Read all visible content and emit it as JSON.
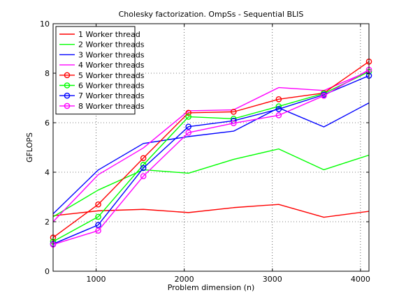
{
  "chart_data": {
    "type": "line",
    "title": "Cholesky factorization. OmpSs - Sequential BLIS",
    "xlabel": "Problem dimension (n)",
    "ylabel": "GFLOPS",
    "xlim": [
      512,
      4096
    ],
    "ylim": [
      0,
      10
    ],
    "x_ticks": [
      1000,
      2000,
      3000,
      4000
    ],
    "y_ticks": [
      0,
      2,
      4,
      6,
      8,
      10
    ],
    "grid": true,
    "legend_position": "top-left",
    "x": [
      512,
      1024,
      1536,
      2048,
      2560,
      3072,
      3584,
      4096
    ],
    "series": [
      {
        "name": "1 Worker thread",
        "color": "#ff0000",
        "marker": "none",
        "values": [
          2.24,
          2.44,
          2.5,
          2.37,
          2.57,
          2.7,
          2.18,
          2.42
        ]
      },
      {
        "name": "2 Worker threads",
        "color": "#00ff00",
        "marker": "none",
        "values": [
          2.2,
          3.28,
          4.1,
          3.96,
          4.52,
          4.94,
          4.1,
          4.69
        ]
      },
      {
        "name": "3 Worker threads",
        "color": "#0000ff",
        "marker": "none",
        "values": [
          2.32,
          4.09,
          5.16,
          5.44,
          5.66,
          6.6,
          5.83,
          6.8
        ]
      },
      {
        "name": "4 Worker threads",
        "color": "#ff00ff",
        "marker": "none",
        "values": [
          2.0,
          3.9,
          4.98,
          6.48,
          6.52,
          7.42,
          7.3,
          8.08
        ]
      },
      {
        "name": "5 Worker threads",
        "color": "#ff0000",
        "marker": "circle",
        "values": [
          1.36,
          2.7,
          4.57,
          6.4,
          6.44,
          6.95,
          7.2,
          8.47
        ]
      },
      {
        "name": "6 Worker threads",
        "color": "#00ff00",
        "marker": "circle",
        "values": [
          1.2,
          2.2,
          4.3,
          6.24,
          6.16,
          6.66,
          7.18,
          8.06
        ]
      },
      {
        "name": "7 Worker threads",
        "color": "#0000ff",
        "marker": "circle",
        "values": [
          1.1,
          1.87,
          4.17,
          5.84,
          6.08,
          6.55,
          7.13,
          7.9
        ]
      },
      {
        "name": "8 Worker threads",
        "color": "#ff00ff",
        "marker": "circle",
        "values": [
          1.08,
          1.64,
          3.84,
          5.6,
          5.98,
          6.3,
          7.09,
          8.14
        ]
      }
    ]
  }
}
